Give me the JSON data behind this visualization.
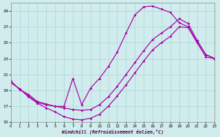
{
  "background_color": "#d0ecec",
  "grid_color": "#aad4d4",
  "line_color": "#aa00aa",
  "marker": "D",
  "markersize": 2.0,
  "linewidth": 0.9,
  "xlim": [
    0,
    23
  ],
  "ylim": [
    15,
    30
  ],
  "xticks": [
    0,
    1,
    2,
    3,
    4,
    5,
    6,
    7,
    8,
    9,
    10,
    11,
    12,
    13,
    14,
    15,
    16,
    17,
    18,
    19,
    20,
    21,
    22,
    23
  ],
  "yticks": [
    15,
    17,
    19,
    21,
    23,
    25,
    27,
    29
  ],
  "xlabel": "Windchill (Refroidissement éolien,°C)",
  "curve1_x": [
    0,
    1,
    2,
    3,
    4,
    5,
    6,
    7,
    8,
    9,
    10,
    11,
    12,
    13,
    14,
    15,
    16,
    17,
    18,
    19,
    20,
    21,
    22,
    23
  ],
  "curve1_y": [
    20.0,
    19.2,
    18.2,
    17.4,
    16.8,
    16.3,
    15.7,
    15.4,
    15.3,
    15.5,
    16.0,
    17.0,
    18.3,
    19.7,
    21.2,
    22.7,
    24.1,
    25.0,
    25.8,
    27.0,
    26.9,
    25.0,
    23.2,
    23.0
  ],
  "curve2_x": [
    0,
    1,
    2,
    3,
    4,
    5,
    6,
    7,
    8,
    9,
    10,
    11,
    12,
    13,
    14,
    15,
    16,
    17,
    18,
    19,
    20,
    21,
    22,
    23
  ],
  "curve2_y": [
    20.2,
    19.1,
    18.5,
    17.6,
    17.3,
    17.0,
    16.8,
    16.6,
    16.5,
    16.6,
    17.2,
    18.2,
    19.5,
    21.0,
    22.5,
    24.0,
    25.4,
    26.2,
    27.0,
    28.0,
    27.4,
    25.3,
    23.5,
    23.0
  ],
  "curve3_x": [
    0,
    1,
    2,
    3,
    4,
    5,
    6,
    7,
    8,
    9,
    10,
    11,
    12,
    13,
    14,
    15,
    16,
    17,
    18,
    19,
    20,
    21,
    22,
    23
  ],
  "curve3_y": [
    20.0,
    19.2,
    18.3,
    17.5,
    17.2,
    17.0,
    17.0,
    20.5,
    17.2,
    19.3,
    20.5,
    22.0,
    23.8,
    26.2,
    28.5,
    29.5,
    29.6,
    29.2,
    28.8,
    27.5,
    27.0,
    25.2,
    23.5,
    23.0
  ]
}
